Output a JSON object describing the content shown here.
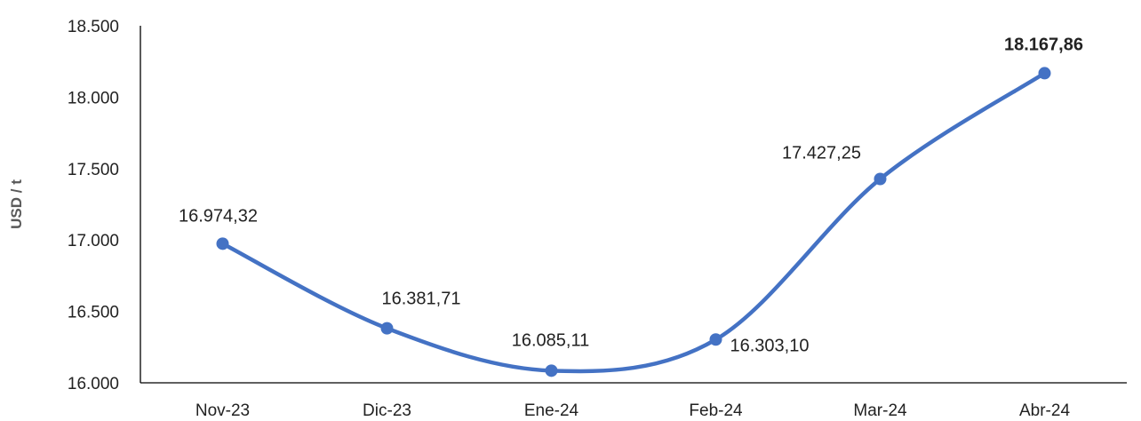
{
  "chart_data": {
    "type": "line",
    "title": "",
    "xlabel": "",
    "ylabel": "USD / t",
    "ylim": [
      16000,
      18500
    ],
    "yticks": [
      16000,
      16500,
      17000,
      17500,
      18000,
      18500
    ],
    "ytick_labels": [
      "16.000",
      "16.500",
      "17.000",
      "17.500",
      "18.000",
      "18.500"
    ],
    "categories": [
      "Nov-23",
      "Dic-23",
      "Ene-24",
      "Feb-24",
      "Mar-24",
      "Abr-24"
    ],
    "series": [
      {
        "values": [
          16974.32,
          16381.71,
          16085.11,
          16303.1,
          17427.25,
          18167.86
        ],
        "labels": [
          "16.974,32",
          "16.381,71",
          "16.085,11",
          "16.303,10",
          "17.427,25",
          "18.167,86"
        ],
        "color": "#4472C4",
        "bold_label_index": 5
      }
    ],
    "smooth": true,
    "grid": false,
    "legend": "none"
  }
}
